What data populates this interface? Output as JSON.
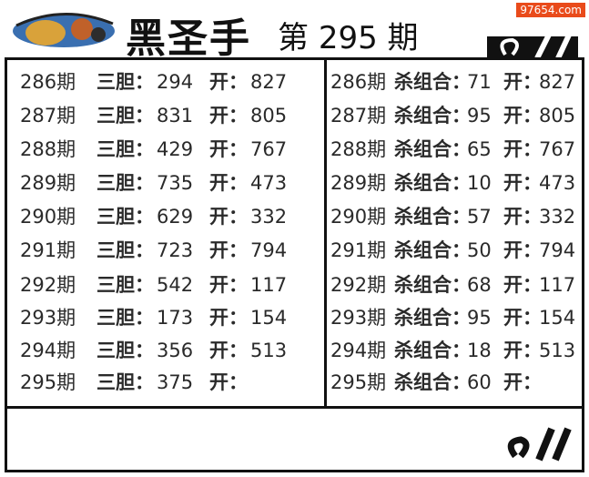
{
  "header": {
    "title": "黑圣手",
    "issue_prefix": "第",
    "issue_number": "295",
    "issue_suffix": "期",
    "watermark": "97654.com"
  },
  "labels": {
    "period_suffix": "期",
    "three": "三胆：",
    "kill": "杀组合：",
    "open": "开："
  },
  "left_rows": [
    {
      "period": "286期",
      "value": "294",
      "open": "827"
    },
    {
      "period": "287期",
      "value": "831",
      "open": "805"
    },
    {
      "period": "288期",
      "value": "429",
      "open": "767"
    },
    {
      "period": "289期",
      "value": "735",
      "open": "473"
    },
    {
      "period": "290期",
      "value": "629",
      "open": "332"
    },
    {
      "period": "291期",
      "value": "723",
      "open": "794"
    },
    {
      "period": "292期",
      "value": "542",
      "open": "117"
    },
    {
      "period": "293期",
      "value": "173",
      "open": "154"
    },
    {
      "period": "294期",
      "value": "356",
      "open": "513"
    },
    {
      "period": "295期",
      "value": "375",
      "open": ""
    }
  ],
  "right_rows": [
    {
      "period": "286期",
      "value": "71",
      "open": "827"
    },
    {
      "period": "287期",
      "value": "95",
      "open": "805"
    },
    {
      "period": "288期",
      "value": "65",
      "open": "767"
    },
    {
      "period": "289期",
      "value": "10",
      "open": "473"
    },
    {
      "period": "290期",
      "value": "57",
      "open": "332"
    },
    {
      "period": "291期",
      "value": "50",
      "open": "794"
    },
    {
      "period": "292期",
      "value": "68",
      "open": "117"
    },
    {
      "period": "293期",
      "value": "95",
      "open": "154"
    },
    {
      "period": "294期",
      "value": "18",
      "open": "513"
    },
    {
      "period": "295期",
      "value": "60",
      "open": ""
    }
  ]
}
